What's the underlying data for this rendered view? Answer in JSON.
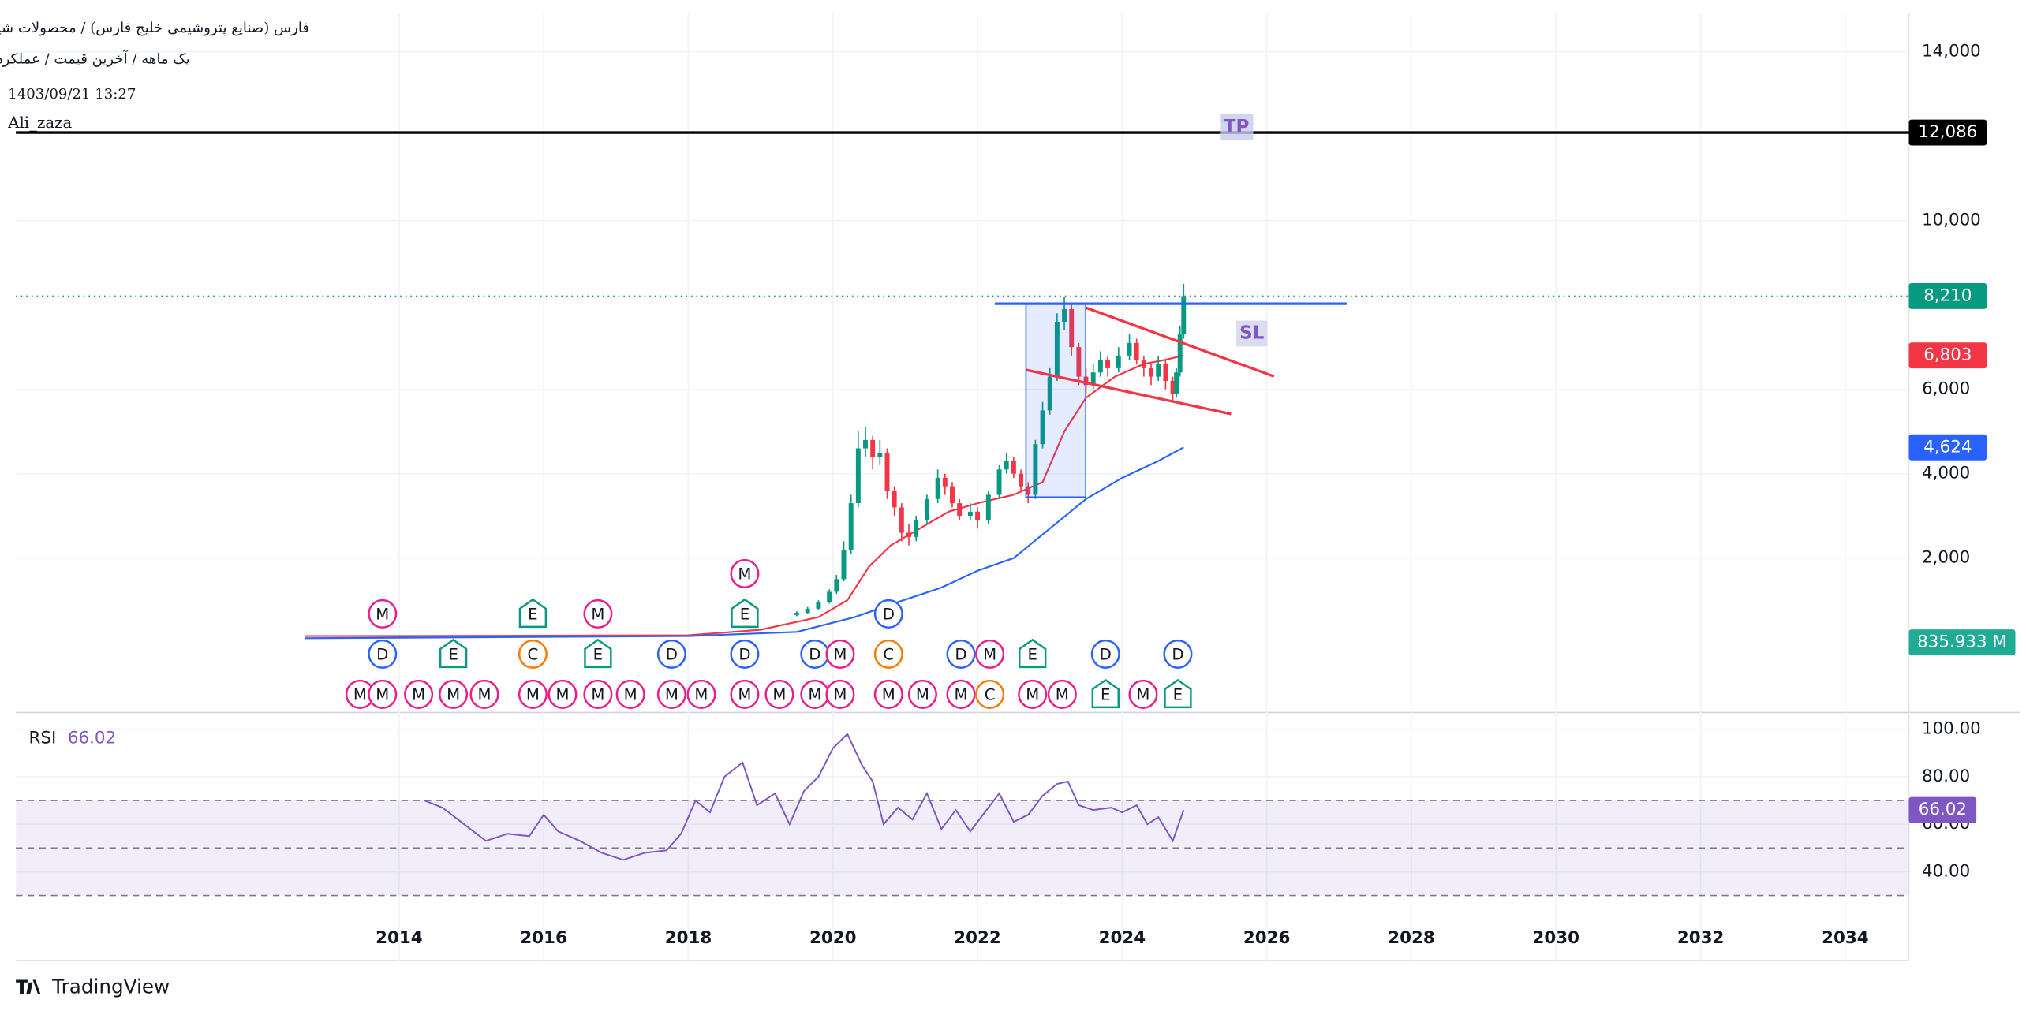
{
  "chart_data": {
    "type": "candlestick",
    "title": "فارس (صنایع پتروشیمی خلیج فارس) / محصولات شیمیایی",
    "subtitle": "یک ماهه / آخرین قیمت / عملکردی",
    "timestamp": "1403/09/21 13:27",
    "author": "Ali_zaza",
    "brand": "TradingView",
    "annotations": {
      "tp": "TP",
      "sl": "SL"
    },
    "xlim": [
      2008.7,
      2034.88
    ],
    "xticks": [
      2014,
      2016,
      2018,
      2020,
      2022,
      2024,
      2026,
      2028,
      2030,
      2032,
      2034
    ],
    "ylim": [
      -1630,
      14920
    ],
    "yticks": [
      {
        "value": 2000,
        "label": "2,000"
      },
      {
        "value": 4000,
        "label": "4,000"
      },
      {
        "value": 6000,
        "label": "6,000"
      },
      {
        "value": 10000,
        "label": "10,000"
      },
      {
        "value": 14000,
        "label": "14,000"
      }
    ],
    "up_color": "#089981",
    "down_color": "#f23645",
    "x": [
      2019.5,
      2019.65,
      2019.8,
      2019.95,
      2020.05,
      2020.15,
      2020.25,
      2020.35,
      2020.45,
      2020.55,
      2020.65,
      2020.75,
      2020.85,
      2020.95,
      2021.05,
      2021.15,
      2021.3,
      2021.45,
      2021.55,
      2021.65,
      2021.75,
      2021.9,
      2022.0,
      2022.15,
      2022.3,
      2022.4,
      2022.5,
      2022.6,
      2022.7,
      2022.8,
      2022.9,
      2023.0,
      2023.1,
      2023.2,
      2023.3,
      2023.4,
      2023.5,
      2023.6,
      2023.7,
      2023.8,
      2023.95,
      2024.1,
      2024.2,
      2024.3,
      2024.4,
      2024.5,
      2024.6,
      2024.7,
      2024.75,
      2024.8,
      2024.85
    ],
    "open": [
      650,
      700,
      800,
      950,
      1200,
      1500,
      2200,
      3300,
      4600,
      4800,
      4400,
      4500,
      3600,
      3200,
      2600,
      2500,
      2900,
      3400,
      3900,
      3700,
      3300,
      3000,
      3100,
      2900,
      3500,
      4100,
      4300,
      4000,
      3700,
      3500,
      4700,
      5500,
      6300,
      7600,
      7900,
      7000,
      6300,
      6100,
      6400,
      6700,
      6500,
      6800,
      7100,
      6700,
      6500,
      6300,
      6600,
      6200,
      5900,
      6400,
      7300
    ],
    "high": [
      740,
      840,
      1000,
      1260,
      1600,
      2400,
      3500,
      5000,
      5100,
      4900,
      4800,
      4600,
      3700,
      3300,
      2800,
      3000,
      3500,
      4100,
      4000,
      3800,
      3400,
      3300,
      3200,
      3600,
      4200,
      4500,
      4400,
      4100,
      3800,
      4800,
      5700,
      6500,
      7800,
      8200,
      8000,
      7100,
      6500,
      6600,
      6900,
      6800,
      7000,
      7300,
      7200,
      6800,
      6600,
      6800,
      6700,
      6300,
      6500,
      7500,
      8500
    ],
    "low": [
      620,
      680,
      780,
      920,
      1150,
      1450,
      2100,
      3200,
      4400,
      4100,
      4200,
      3400,
      3000,
      2400,
      2300,
      2400,
      2800,
      3300,
      3500,
      3200,
      2900,
      2900,
      2700,
      2800,
      3400,
      4000,
      3900,
      3600,
      3300,
      3400,
      4600,
      5400,
      6200,
      7400,
      6800,
      6100,
      5900,
      6000,
      6300,
      6300,
      6400,
      6700,
      6600,
      6300,
      6100,
      6200,
      6000,
      5700,
      5800,
      6300,
      7200
    ],
    "close": [
      700,
      800,
      950,
      1200,
      1500,
      2200,
      3300,
      4600,
      4800,
      4400,
      4500,
      3600,
      3200,
      2600,
      2500,
      2900,
      3400,
      3900,
      3700,
      3300,
      3000,
      3100,
      2900,
      3500,
      4100,
      4300,
      4000,
      3700,
      3500,
      4700,
      5500,
      6300,
      7600,
      7900,
      7000,
      6300,
      6100,
      6400,
      6700,
      6500,
      6800,
      7100,
      6700,
      6500,
      6300,
      6600,
      6200,
      5900,
      6400,
      7300,
      8210
    ],
    "series": [
      {
        "color": "#f23645",
        "x": [
          2012.7,
          2016,
          2018,
          2019,
          2019.8,
          2020.2,
          2020.5,
          2020.8,
          2021.2,
          2021.6,
          2022.0,
          2022.5,
          2022.9,
          2023.2,
          2023.5,
          2023.9,
          2024.3,
          2024.6,
          2024.85
        ],
        "values": [
          150,
          160,
          170,
          300,
          600,
          1000,
          1800,
          2300,
          2700,
          3100,
          3300,
          3500,
          3800,
          5000,
          5800,
          6300,
          6600,
          6700,
          6803
        ],
        "value_label": "6,803"
      },
      {
        "color": "#2962ff",
        "x": [
          2012.7,
          2018,
          2019.5,
          2020.3,
          2020.8,
          2021.5,
          2022.0,
          2022.5,
          2023.0,
          2023.5,
          2024.0,
          2024.5,
          2024.85
        ],
        "values": [
          100,
          150,
          250,
          600,
          900,
          1300,
          1700,
          2000,
          2700,
          3400,
          3900,
          4300,
          4624
        ],
        "value_label": "4,624"
      }
    ],
    "price_lines": [
      {
        "value": 12086,
        "label": "12,086",
        "color": "#000000",
        "style": "solid"
      },
      {
        "value": 8210,
        "label": "8,210",
        "color": "#089981",
        "style": "dotted"
      }
    ],
    "volume_label": "835.933 M",
    "event_colors": {
      "M": "#e91e8c",
      "D": "#2962ff",
      "E": "#089981",
      "C": "#f57c00"
    },
    "events": [
      {
        "x": 2013.46,
        "label": "M"
      },
      {
        "x": 2013.77,
        "label": "M"
      },
      {
        "x": 2014.27,
        "label": "M"
      },
      {
        "x": 2014.75,
        "label": "M"
      },
      {
        "x": 2015.18,
        "label": "M"
      },
      {
        "x": 2015.85,
        "label": "M"
      },
      {
        "x": 2016.26,
        "label": "M"
      },
      {
        "x": 2016.75,
        "label": "M"
      },
      {
        "x": 2017.2,
        "label": "M"
      },
      {
        "x": 2017.77,
        "label": "M"
      },
      {
        "x": 2018.18,
        "label": "M"
      },
      {
        "x": 2018.78,
        "label": "M"
      },
      {
        "x": 2019.26,
        "label": "M"
      },
      {
        "x": 2019.75,
        "label": "M"
      },
      {
        "x": 2020.1,
        "label": "M"
      },
      {
        "x": 2020.77,
        "label": "M"
      },
      {
        "x": 2021.24,
        "label": "M"
      },
      {
        "x": 2021.77,
        "label": "M"
      },
      {
        "x": 2022.17,
        "label": "C"
      },
      {
        "x": 2022.76,
        "label": "M"
      },
      {
        "x": 2023.17,
        "label": "M"
      },
      {
        "x": 2023.77,
        "label": "E"
      },
      {
        "x": 2024.29,
        "label": "M"
      },
      {
        "x": 2024.77,
        "label": "E"
      },
      {
        "x": 2013.77,
        "label": "D"
      },
      {
        "x": 2014.75,
        "label": "E"
      },
      {
        "x": 2015.85,
        "label": "C"
      },
      {
        "x": 2016.75,
        "label": "E"
      },
      {
        "x": 2017.77,
        "label": "D"
      },
      {
        "x": 2018.78,
        "label": "D"
      },
      {
        "x": 2019.75,
        "label": "D"
      },
      {
        "x": 2020.1,
        "label": "M"
      },
      {
        "x": 2020.77,
        "label": "C"
      },
      {
        "x": 2021.77,
        "label": "D"
      },
      {
        "x": 2022.17,
        "label": "M"
      },
      {
        "x": 2022.76,
        "label": "E"
      },
      {
        "x": 2023.77,
        "label": "D"
      },
      {
        "x": 2024.77,
        "label": "D"
      },
      {
        "x": 2013.77,
        "label": "M"
      },
      {
        "x": 2015.85,
        "label": "E"
      },
      {
        "x": 2016.75,
        "label": "M"
      },
      {
        "x": 2018.78,
        "label": "E"
      },
      {
        "x": 2020.77,
        "label": "D"
      },
      {
        "x": 2018.78,
        "label": "M"
      }
    ],
    "rsi": {
      "name": "RSI",
      "color": "#7e57c2",
      "x": [
        2014.35,
        2014.6,
        2014.9,
        2015.2,
        2015.5,
        2015.8,
        2016.0,
        2016.2,
        2016.5,
        2016.8,
        2017.1,
        2017.4,
        2017.7,
        2017.9,
        2018.1,
        2018.3,
        2018.5,
        2018.75,
        2018.95,
        2019.2,
        2019.4,
        2019.6,
        2019.8,
        2020.0,
        2020.2,
        2020.4,
        2020.55,
        2020.7,
        2020.9,
        2021.1,
        2021.3,
        2021.5,
        2021.7,
        2021.9,
        2022.1,
        2022.3,
        2022.5,
        2022.7,
        2022.9,
        2023.1,
        2023.25,
        2023.4,
        2023.6,
        2023.85,
        2024.0,
        2024.2,
        2024.35,
        2024.5,
        2024.7,
        2024.85
      ],
      "values": [
        70,
        67,
        60,
        53,
        56,
        55,
        64,
        57,
        53,
        48,
        45,
        48,
        49,
        56,
        70,
        65,
        80,
        86,
        68,
        73,
        60,
        74,
        80,
        92,
        98,
        85,
        78,
        60,
        67,
        62,
        73,
        58,
        66,
        57,
        65,
        73,
        61,
        64,
        72,
        77,
        78,
        68,
        66,
        67,
        65,
        68,
        60,
        63,
        53,
        66.02
      ],
      "ylim": [
        2.7,
        106.5
      ],
      "yticks": [
        {
          "value": 40,
          "label": "40.00"
        },
        {
          "value": 60,
          "label": "60.00"
        },
        {
          "value": 80,
          "label": "80.00"
        },
        {
          "value": 100,
          "label": "100.00"
        }
      ],
      "levels": [
        70,
        50,
        30
      ]
    }
  }
}
